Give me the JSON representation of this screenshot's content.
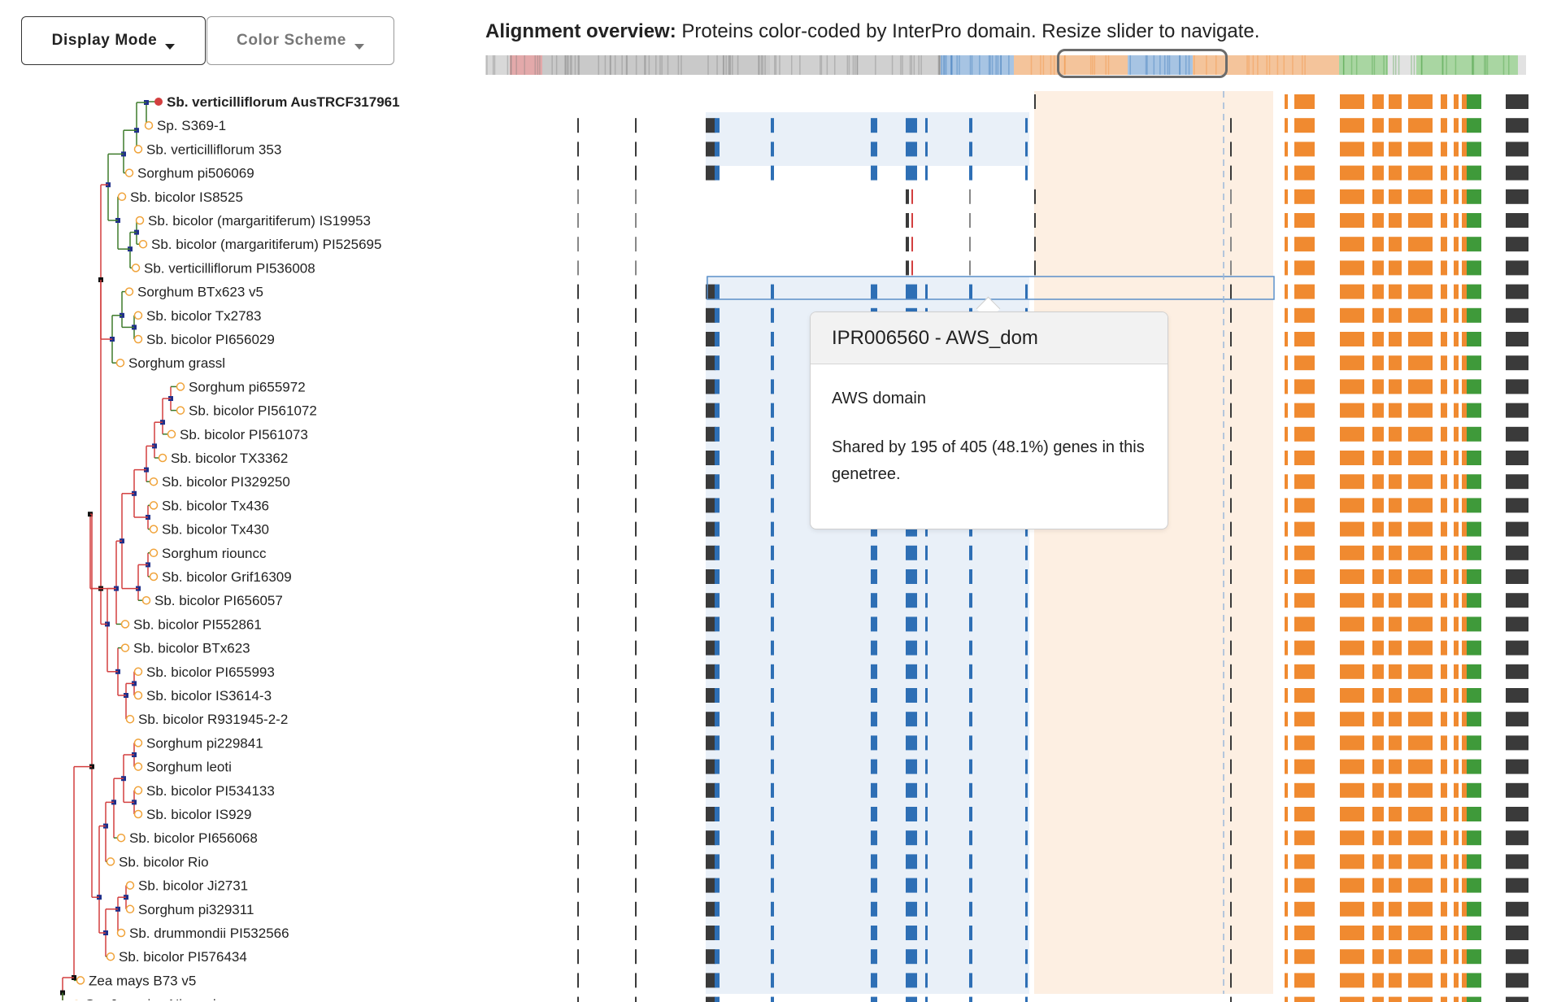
{
  "toolbar": {
    "display_mode": {
      "label": "Display Mode"
    },
    "color_scheme": {
      "label": "Color Scheme"
    }
  },
  "overview": {
    "title_bold": "Alignment overview:",
    "title_rest": " Proteins color-coded by InterPro domain. Resize slider to navigate."
  },
  "colors": {
    "aws_blue": "#2e6fb5",
    "aws_blue_bg": "#e9f0f8",
    "orange": "#f08a30",
    "orange_bg": "#fdefe2",
    "green": "#3f9a3a",
    "dark": "#3a3a3a",
    "tree_red": "#d33f3f",
    "tree_green": "#3d7a2a",
    "leaf_orange": "#f0a33a"
  },
  "tree": {
    "leaves": [
      {
        "label": "Sb. verticilliflorum AusTRCF317961",
        "highlight": true
      },
      {
        "label": "Sp. S369-1"
      },
      {
        "label": "Sb. verticilliflorum 353"
      },
      {
        "label": "Sorghum pi506069"
      },
      {
        "label": "Sb. bicolor IS8525"
      },
      {
        "label": "Sb. bicolor (margaritiferum) IS19953"
      },
      {
        "label": "Sb. bicolor (margaritiferum) PI525695"
      },
      {
        "label": "Sb. verticilliflorum PI536008"
      },
      {
        "label": "Sorghum BTx623 v5"
      },
      {
        "label": "Sb. bicolor Tx2783"
      },
      {
        "label": "Sb. bicolor PI656029"
      },
      {
        "label": "Sorghum grassl"
      },
      {
        "label": "Sorghum pi655972"
      },
      {
        "label": "Sb. bicolor PI561072"
      },
      {
        "label": "Sb. bicolor PI561073"
      },
      {
        "label": "Sb. bicolor TX3362"
      },
      {
        "label": "Sb. bicolor PI329250"
      },
      {
        "label": "Sb. bicolor Tx436"
      },
      {
        "label": "Sb. bicolor Tx430"
      },
      {
        "label": "Sorghum riouncc"
      },
      {
        "label": "Sb. bicolor Grif16309"
      },
      {
        "label": "Sb. bicolor PI656057"
      },
      {
        "label": "Sb. bicolor PI552861"
      },
      {
        "label": "Sb. bicolor BTx623"
      },
      {
        "label": "Sb. bicolor PI655993"
      },
      {
        "label": "Sb. bicolor IS3614-3"
      },
      {
        "label": "Sb. bicolor R931945-2-2"
      },
      {
        "label": "Sorghum pi229841"
      },
      {
        "label": "Sorghum leoti"
      },
      {
        "label": "Sb. bicolor PI534133"
      },
      {
        "label": "Sb. bicolor IS929"
      },
      {
        "label": "Sb. bicolor PI656068"
      },
      {
        "label": "Sb. bicolor Rio"
      },
      {
        "label": "Sb. bicolor Ji2731"
      },
      {
        "label": "Sorghum pi329311"
      },
      {
        "label": "Sb. drummondii PI532566"
      },
      {
        "label": "Sb. bicolor PI576434"
      },
      {
        "label": "Zea mays B73 v5"
      },
      {
        "label": "Os. Japonica Nipponbare"
      }
    ]
  },
  "tooltip": {
    "title": "IPR006560 - AWS_dom",
    "description": "AWS domain",
    "shared": "Shared by 195 of 405 (48.1%) genes in this genetree."
  }
}
